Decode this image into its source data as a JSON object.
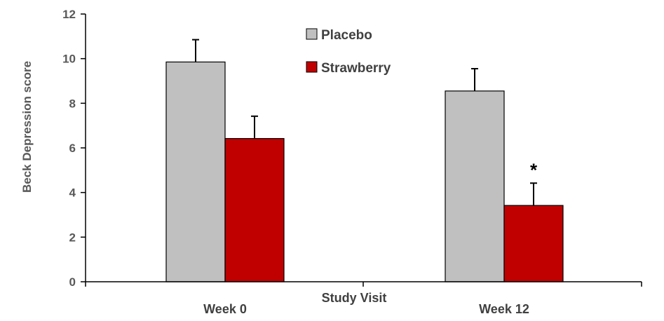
{
  "chart_data": {
    "type": "bar",
    "title": "",
    "xlabel": "Study Visit",
    "ylabel": "Beck Depression score",
    "categories": [
      "Week 0",
      "Week 12"
    ],
    "ylim": [
      0,
      12
    ],
    "yticks": [
      0,
      2,
      4,
      6,
      8,
      10,
      12
    ],
    "ytick_labels": [
      "0",
      "2",
      "4",
      "6",
      "8",
      "10",
      "12"
    ],
    "legend_position": "top-center",
    "grid": false,
    "series": [
      {
        "name": "Placebo",
        "values": [
          9.85,
          8.55
        ],
        "errors": [
          1.0,
          1.0
        ],
        "color": "#c0c0c0"
      },
      {
        "name": "Strawberry",
        "values": [
          6.42,
          3.42
        ],
        "errors": [
          1.0,
          1.0
        ],
        "color": "#c00000"
      }
    ],
    "annotations": [
      {
        "text": "*",
        "series": 1,
        "category": 1
      }
    ]
  }
}
